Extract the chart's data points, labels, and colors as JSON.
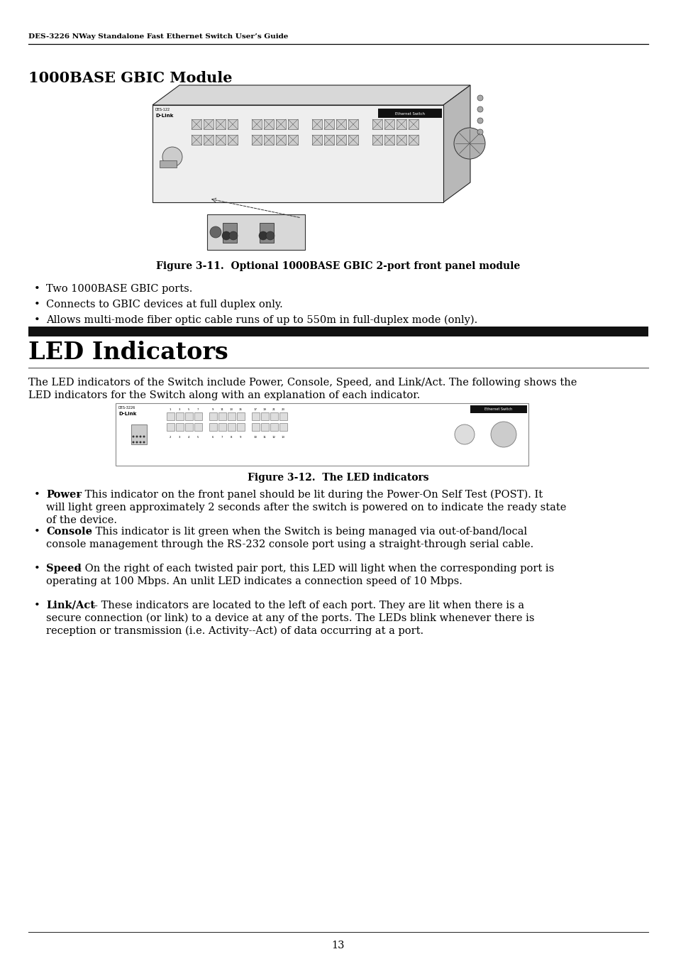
{
  "page_header": "DES-3226 NWay Standalone Fast Ethernet Switch User’s Guide",
  "section1_title": "1000BASE GBIC Module",
  "fig11_caption": "Figure 3-11.  Optional 1000BASE GBIC 2-port front panel module",
  "bullet1_1": "Two 1000BASE GBIC ports.",
  "bullet1_2": "Connects to GBIC devices at full duplex only.",
  "bullet1_3": "Allows multi-mode fiber optic cable runs of up to 550m in full-duplex mode (only).",
  "section2_title": "LED Indicators",
  "section2_intro1": "The LED indicators of the Switch include Power, Console, Speed, and Link/Act. The following shows the",
  "section2_intro2": "LED indicators for the Switch along with an explanation of each indicator.",
  "fig12_caption": "Figure 3-12.  The LED indicators",
  "b2_1_bold": "Power",
  "b2_1_rest": " – This indicator on the front panel should be lit during the Power-On Self Test (POST). It",
  "b2_1_l2": "will light green approximately 2 seconds after the switch is powered on to indicate the ready state",
  "b2_1_l3": "of the device.",
  "b2_2_bold": "Console",
  "b2_2_rest": " – This indicator is lit green when the Switch is being managed via out-of-band/local",
  "b2_2_l2": "console management through the RS-232 console port using a straight-through serial cable.",
  "b2_3_bold": "Speed",
  "b2_3_rest": " – On the right of each twisted pair port, this LED will light when the corresponding port is",
  "b2_3_l2": "operating at 100 Mbps. An unlit LED indicates a connection speed of 10 Mbps.",
  "b2_4_bold": "Link/Act",
  "b2_4_rest": " – These indicators are located to the left of each port. They are lit when there is a",
  "b2_4_l2": "secure connection (or link) to a device at any of the ports. The LEDs blink whenever there is",
  "b2_4_l3": "reception or transmission (i.e. Activity--Act) of data occurring at a port.",
  "page_number": "13",
  "bg_color": "#ffffff",
  "text_color": "#000000"
}
